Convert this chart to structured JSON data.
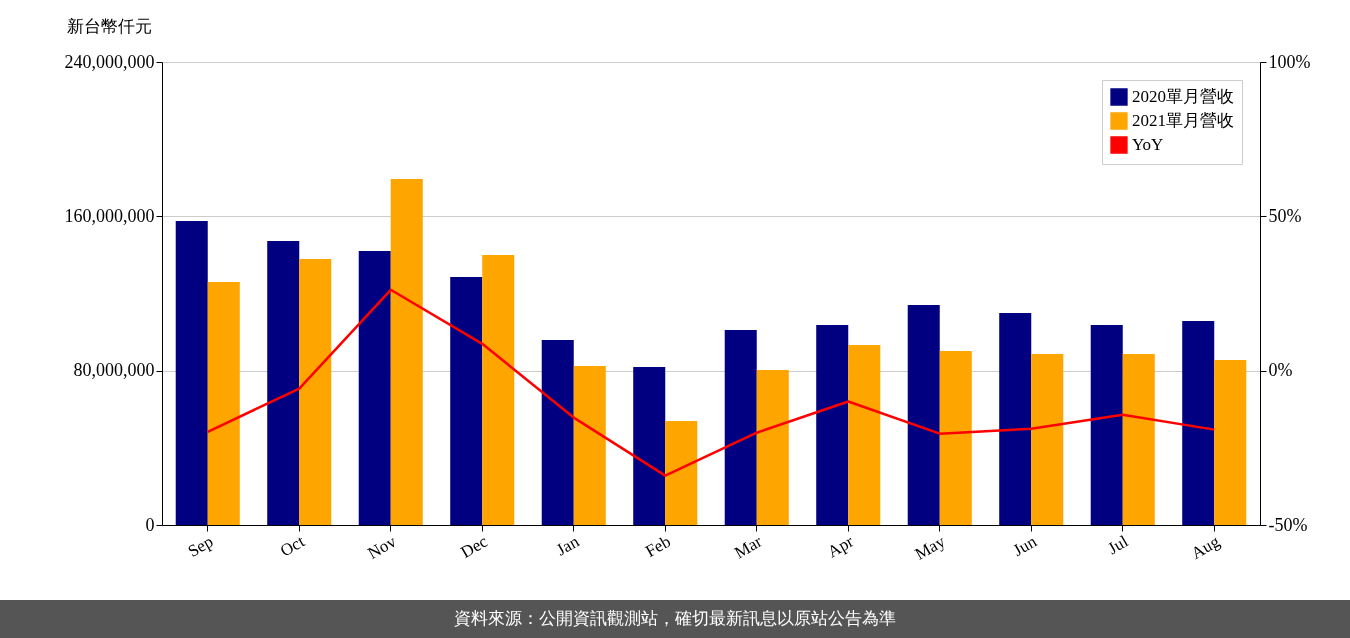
{
  "chart_data": {
    "type": "bar",
    "ylabel": "新台幣仟元",
    "categories": [
      "Sep",
      "Oct",
      "Nov",
      "Dec",
      "Jan",
      "Feb",
      "Mar",
      "Apr",
      "May",
      "Jun",
      "Jul",
      "Aug"
    ],
    "series": [
      {
        "name": "2020單月營收",
        "color": "#000080",
        "values": [
          157600000,
          147200000,
          142000000,
          128600000,
          95900000,
          81900000,
          101100000,
          103700000,
          114100000,
          109900000,
          103700000,
          105800000
        ]
      },
      {
        "name": "2021單月營收",
        "color": "#ffa500",
        "values": [
          126000000,
          137900000,
          179400000,
          140000000,
          82400000,
          53900000,
          80400000,
          93300000,
          90200000,
          88600000,
          88600000,
          85500000
        ]
      },
      {
        "name": "YoY",
        "type": "line",
        "axis": "y2",
        "color": "#ff0000",
        "values": [
          -19.8,
          -5.8,
          26.2,
          8.7,
          -15.2,
          -34.0,
          -20.1,
          -10.0,
          -20.4,
          -18.8,
          -14.3,
          -19.1
        ]
      }
    ],
    "ylim": [
      0,
      240000000
    ],
    "yticks": [
      {
        "value": 0,
        "label": "0"
      },
      {
        "value": 80000000,
        "label": "80,000,000"
      },
      {
        "value": 160000000,
        "label": "160,000,000"
      },
      {
        "value": 240000000,
        "label": "240,000,000"
      }
    ],
    "y2lim": [
      -50,
      100
    ],
    "y2ticks": [
      {
        "value": -50,
        "label": "-50%"
      },
      {
        "value": 0,
        "label": "0%"
      },
      {
        "value": 50,
        "label": "50%"
      },
      {
        "value": 100,
        "label": "100%"
      }
    ],
    "grid": "y",
    "legend": "top right",
    "annotations": [
      "資料來源：公開資訊觀測站，確切最新訊息以原站公告為準"
    ]
  }
}
